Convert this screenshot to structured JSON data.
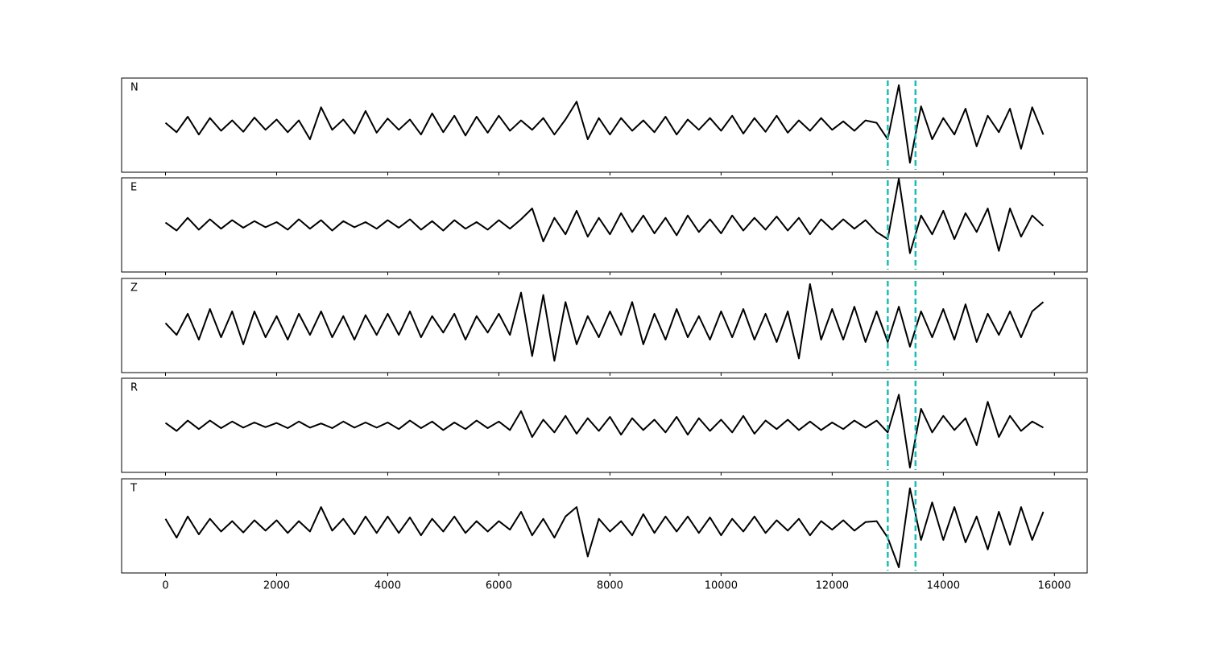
{
  "chart_data": {
    "type": "line",
    "layout": "stacked",
    "x": [
      0,
      200,
      400,
      600,
      800,
      1000,
      1200,
      1400,
      1600,
      1800,
      2000,
      2200,
      2400,
      2600,
      2800,
      3000,
      3200,
      3400,
      3600,
      3800,
      4000,
      4200,
      4400,
      4600,
      4800,
      5000,
      5200,
      5400,
      5600,
      5800,
      6000,
      6200,
      6400,
      6600,
      6800,
      7000,
      7200,
      7400,
      7600,
      7800,
      8000,
      8200,
      8400,
      8600,
      8800,
      9000,
      9200,
      9400,
      9600,
      9800,
      10000,
      10200,
      10400,
      10600,
      10800,
      11000,
      11200,
      11400,
      11600,
      11800,
      12000,
      12200,
      12400,
      12600,
      12800,
      13000,
      13200,
      13400,
      13600,
      13800,
      14000,
      14200,
      14400,
      14600,
      14800,
      15000,
      15200,
      15400,
      15600,
      15800
    ],
    "xlim": [
      -790,
      16590
    ],
    "xticks": [
      0,
      2000,
      4000,
      6000,
      8000,
      10000,
      12000,
      14000,
      16000
    ],
    "ylim": [
      -1,
      1
    ],
    "vlines": [
      13000,
      13500
    ],
    "vline_color": "#1cbdb4",
    "series": [
      {
        "name": "N",
        "color": "#000000",
        "values": [
          0.05,
          -0.15,
          0.18,
          -0.2,
          0.15,
          -0.12,
          0.1,
          -0.14,
          0.16,
          -0.1,
          0.12,
          -0.15,
          0.1,
          -0.3,
          0.38,
          -0.1,
          0.12,
          -0.18,
          0.3,
          -0.16,
          0.14,
          -0.1,
          0.12,
          -0.2,
          0.25,
          -0.15,
          0.2,
          -0.22,
          0.18,
          -0.16,
          0.2,
          -0.12,
          0.1,
          -0.1,
          0.15,
          -0.2,
          0.12,
          0.5,
          -0.3,
          0.15,
          -0.2,
          0.15,
          -0.12,
          0.1,
          -0.15,
          0.18,
          -0.2,
          0.12,
          -0.1,
          0.15,
          -0.12,
          0.2,
          -0.18,
          0.15,
          -0.14,
          0.2,
          -0.16,
          0.1,
          -0.12,
          0.15,
          -0.1,
          0.08,
          -0.12,
          0.1,
          0.05,
          -0.3,
          0.85,
          -0.8,
          0.4,
          -0.3,
          0.15,
          -0.2,
          0.35,
          -0.45,
          0.2,
          -0.15,
          0.35,
          -0.5,
          0.38,
          -0.2
        ]
      },
      {
        "name": "E",
        "color": "#000000",
        "values": [
          0.05,
          -0.12,
          0.15,
          -0.1,
          0.12,
          -0.08,
          0.1,
          -0.06,
          0.08,
          -0.05,
          0.06,
          -0.1,
          0.12,
          -0.08,
          0.1,
          -0.12,
          0.08,
          -0.05,
          0.06,
          -0.08,
          0.1,
          -0.06,
          0.12,
          -0.1,
          0.08,
          -0.12,
          0.1,
          -0.08,
          0.06,
          -0.1,
          0.1,
          -0.08,
          0.12,
          0.35,
          -0.35,
          0.15,
          -0.2,
          0.3,
          -0.25,
          0.15,
          -0.2,
          0.25,
          -0.15,
          0.2,
          -0.18,
          0.15,
          -0.22,
          0.2,
          -0.15,
          0.12,
          -0.18,
          0.2,
          -0.12,
          0.15,
          -0.1,
          0.18,
          -0.12,
          0.15,
          -0.2,
          0.12,
          -0.1,
          0.12,
          -0.08,
          0.1,
          -0.15,
          -0.3,
          0.98,
          -0.6,
          0.2,
          -0.2,
          0.3,
          -0.3,
          0.25,
          -0.15,
          0.35,
          -0.55,
          0.35,
          -0.25,
          0.2,
          -0.02
        ]
      },
      {
        "name": "Z",
        "color": "#000000",
        "values": [
          0.05,
          -0.2,
          0.25,
          -0.3,
          0.35,
          -0.25,
          0.3,
          -0.4,
          0.3,
          -0.25,
          0.2,
          -0.3,
          0.25,
          -0.2,
          0.3,
          -0.25,
          0.2,
          -0.3,
          0.22,
          -0.2,
          0.25,
          -0.2,
          0.3,
          -0.25,
          0.2,
          -0.15,
          0.25,
          -0.3,
          0.2,
          -0.15,
          0.25,
          -0.2,
          0.7,
          -0.65,
          0.65,
          -0.75,
          0.5,
          -0.4,
          0.2,
          -0.25,
          0.3,
          -0.2,
          0.5,
          -0.4,
          0.25,
          -0.3,
          0.35,
          -0.25,
          0.2,
          -0.3,
          0.3,
          -0.25,
          0.35,
          -0.3,
          0.25,
          -0.35,
          0.3,
          -0.7,
          0.88,
          -0.3,
          0.35,
          -0.3,
          0.4,
          -0.35,
          0.3,
          -0.35,
          0.4,
          -0.45,
          0.3,
          -0.25,
          0.35,
          -0.3,
          0.45,
          -0.35,
          0.25,
          -0.2,
          0.3,
          -0.25,
          0.3,
          0.5
        ]
      },
      {
        "name": "R",
        "color": "#000000",
        "values": [
          0.05,
          -0.12,
          0.1,
          -0.08,
          0.1,
          -0.06,
          0.08,
          -0.05,
          0.06,
          -0.04,
          0.05,
          -0.06,
          0.08,
          -0.05,
          0.04,
          -0.06,
          0.08,
          -0.05,
          0.06,
          -0.05,
          0.06,
          -0.08,
          0.1,
          -0.06,
          0.08,
          -0.1,
          0.06,
          -0.08,
          0.1,
          -0.06,
          0.08,
          -0.1,
          0.3,
          -0.25,
          0.12,
          -0.15,
          0.2,
          -0.18,
          0.15,
          -0.12,
          0.18,
          -0.2,
          0.15,
          -0.1,
          0.12,
          -0.15,
          0.18,
          -0.2,
          0.15,
          -0.12,
          0.12,
          -0.15,
          0.2,
          -0.18,
          0.1,
          -0.08,
          0.12,
          -0.1,
          0.08,
          -0.1,
          0.06,
          -0.08,
          0.1,
          -0.05,
          0.1,
          -0.15,
          0.65,
          -0.9,
          0.35,
          -0.15,
          0.2,
          -0.1,
          0.15,
          -0.42,
          0.5,
          -0.25,
          0.2,
          -0.12,
          0.08,
          -0.05
        ]
      },
      {
        "name": "T",
        "color": "#000000",
        "values": [
          0.15,
          -0.25,
          0.2,
          -0.18,
          0.15,
          -0.12,
          0.1,
          -0.14,
          0.12,
          -0.1,
          0.12,
          -0.15,
          0.1,
          -0.12,
          0.4,
          -0.1,
          0.15,
          -0.18,
          0.2,
          -0.15,
          0.2,
          -0.15,
          0.18,
          -0.2,
          0.15,
          -0.12,
          0.2,
          -0.15,
          0.1,
          -0.12,
          0.1,
          -0.08,
          0.3,
          -0.2,
          0.15,
          -0.25,
          0.2,
          0.4,
          -0.65,
          0.15,
          -0.12,
          0.1,
          -0.2,
          0.25,
          -0.15,
          0.2,
          -0.12,
          0.2,
          -0.15,
          0.18,
          -0.2,
          0.15,
          -0.12,
          0.2,
          -0.15,
          0.12,
          -0.1,
          0.15,
          -0.2,
          0.1,
          -0.08,
          0.12,
          -0.1,
          0.08,
          0.1,
          -0.25,
          -0.88,
          0.8,
          -0.3,
          0.5,
          -0.3,
          0.4,
          -0.35,
          0.2,
          -0.5,
          0.3,
          -0.4,
          0.4,
          -0.3,
          0.3
        ]
      }
    ]
  }
}
